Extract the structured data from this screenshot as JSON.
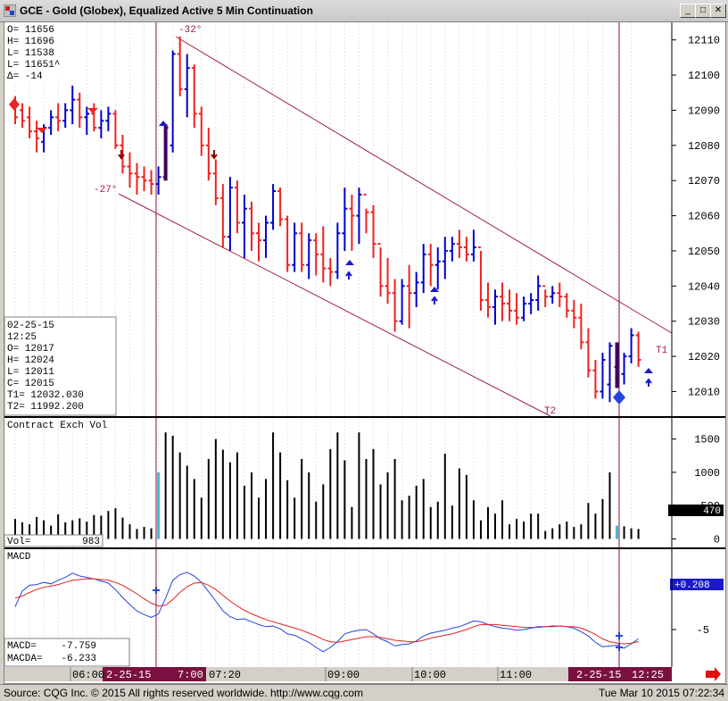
{
  "window": {
    "title": "GCE - Gold (Globex), Equalized Active 5 Min Continuation",
    "min_icon": "minimize-icon",
    "max_icon": "maximize-icon",
    "close_icon": "close-icon"
  },
  "top_ohlc": {
    "lines": [
      "O=   11656",
      "H=   11696",
      "L=   11538",
      "L=   11651^",
      "Δ=     -14"
    ]
  },
  "cursor_box": {
    "lines": [
      "02-25-15",
      "12:25",
      "O=          12017",
      "H=          12024",
      "L=          12011",
      "C=          12015",
      "T1=    12032.030",
      "T2=    11992.200"
    ]
  },
  "annotations": {
    "high_angle": "-32°",
    "low_angle": "-27°",
    "t1": "T1",
    "t2": "T2"
  },
  "volume_panel": {
    "title": "Contract Exch Vol",
    "vol_label": "Vol=",
    "vol_value": "983",
    "last_value": "470"
  },
  "macd_panel": {
    "title": "MACD",
    "badge": "+0.208",
    "macd_label": "MACD=",
    "macd_value": "-7.759",
    "macda_label": "MACDA=",
    "macda_value": "-6.233"
  },
  "time_axis": [
    "06:00",
    "2-25-15",
    "7:00",
    "07:20",
    "09:00",
    "10:00",
    "11:00",
    "2-25-15",
    "12:25"
  ],
  "status": {
    "left": "Source: CQG Inc. © 2015 All rights reserved worldwide. http://www.cqg.com",
    "right": "Tue Mar 10 2015 07:22:34"
  },
  "colors": {
    "up": "#0000cc",
    "down": "#ee2222",
    "highlight_bar": "#400060",
    "vol_highlight": "#44bbcc",
    "channel": "#a02040",
    "macd": "#2244dd",
    "signal": "#dd2222"
  },
  "chart_data": [
    {
      "type": "ohlc",
      "title": "GCE - Gold (Globex), Equalized Active 5 Min Continuation",
      "y_axis_ticks": [
        12010,
        12020,
        12030,
        12040,
        12050,
        12060,
        12070,
        12080,
        12090,
        12100,
        12110
      ],
      "ylim": [
        12003,
        12115
      ],
      "bars": [
        [
          12092,
          12094,
          12086,
          12088
        ],
        [
          12090,
          12092,
          12085,
          12087
        ],
        [
          12088,
          12091,
          12082,
          12084
        ],
        [
          12084,
          12087,
          12078,
          12082
        ],
        [
          12081,
          12086,
          12078,
          12085
        ],
        [
          12085,
          12090,
          12083,
          12088
        ],
        [
          12088,
          12092,
          12084,
          12087
        ],
        [
          12087,
          12092,
          12085,
          12090
        ],
        [
          12090,
          12097,
          12086,
          12093
        ],
        [
          12093,
          12095,
          12085,
          12088
        ],
        [
          12088,
          12091,
          12083,
          12089
        ],
        [
          12089,
          12092,
          12084,
          12085
        ],
        [
          12085,
          12090,
          12082,
          12087
        ],
        [
          12087,
          12091,
          12084,
          12089
        ],
        [
          12089,
          12090,
          12079,
          12080
        ],
        [
          12080,
          12083,
          12072,
          12074
        ],
        [
          12074,
          12078,
          12068,
          12072
        ],
        [
          12072,
          12075,
          12066,
          12071
        ],
        [
          12071,
          12074,
          12067,
          12070
        ],
        [
          12070,
          12073,
          12066,
          12069
        ],
        [
          12069,
          12074,
          12066,
          12071
        ],
        [
          12071,
          12086,
          12070,
          12085
        ],
        [
          12080,
          12107,
          12078,
          12106
        ],
        [
          12106,
          12111,
          12094,
          12096
        ],
        [
          12096,
          12106,
          12088,
          12102
        ],
        [
          12102,
          12103,
          12085,
          12089
        ],
        [
          12089,
          12091,
          12077,
          12080
        ],
        [
          12080,
          12085,
          12070,
          12072
        ],
        [
          12072,
          12076,
          12063,
          12065
        ],
        [
          12065,
          12069,
          12051,
          12054
        ],
        [
          12054,
          12071,
          12050,
          12068
        ],
        [
          12068,
          12070,
          12055,
          12058
        ],
        [
          12058,
          12066,
          12048,
          12062
        ],
        [
          12062,
          12064,
          12050,
          12055
        ],
        [
          12055,
          12058,
          12047,
          12053
        ],
        [
          12053,
          12060,
          12048,
          12058
        ],
        [
          12058,
          12069,
          12056,
          12067
        ],
        [
          12067,
          12068,
          12057,
          12059
        ],
        [
          12059,
          12060,
          12044,
          12046
        ],
        [
          12046,
          12058,
          12044,
          12055
        ],
        [
          12055,
          12058,
          12044,
          12046
        ],
        [
          12046,
          12055,
          12042,
          12053
        ],
        [
          12053,
          12055,
          12043,
          12049
        ],
        [
          12049,
          12057,
          12041,
          12045
        ],
        [
          12045,
          12048,
          12040,
          12044
        ],
        [
          12044,
          12058,
          12042,
          12055
        ],
        [
          12055,
          12068,
          12050,
          12062
        ],
        [
          12062,
          12066,
          12050,
          12060
        ],
        [
          12060,
          12068,
          12052,
          12066
        ],
        [
          12066,
          12062,
          12055,
          12061
        ],
        [
          12061,
          12063,
          12048,
          12052
        ],
        [
          12052,
          12051,
          12037,
          12040
        ],
        [
          12040,
          12048,
          12035,
          12038
        ],
        [
          12038,
          12042,
          12027,
          12030
        ],
        [
          12030,
          12042,
          12029,
          12040
        ],
        [
          12040,
          12046,
          12028,
          12038
        ],
        [
          12038,
          12044,
          12034,
          12041
        ],
        [
          12041,
          12052,
          12038,
          12049
        ],
        [
          12049,
          12052,
          12040,
          12046
        ],
        [
          12046,
          12051,
          12039,
          12047
        ],
        [
          12047,
          12054,
          12042,
          12050
        ],
        [
          12050,
          12054,
          12047,
          12052
        ],
        [
          12052,
          12056,
          12048,
          12051
        ],
        [
          12051,
          12054,
          12047,
          12049
        ],
        [
          12049,
          12056,
          12047,
          12051
        ],
        [
          12051,
          12050,
          12033,
          12036
        ],
        [
          12036,
          12041,
          12031,
          12034
        ],
        [
          12034,
          12039,
          12029,
          12037
        ],
        [
          12037,
          12041,
          12030,
          12035
        ],
        [
          12035,
          12039,
          12030,
          12033
        ],
        [
          12033,
          12038,
          12029,
          12031
        ],
        [
          12031,
          12037,
          12030,
          12035
        ],
        [
          12035,
          12038,
          12032,
          12036
        ],
        [
          12036,
          12043,
          12033,
          12040
        ],
        [
          12040,
          12039,
          12034,
          12037
        ],
        [
          12037,
          12040,
          12035,
          12038
        ],
        [
          12038,
          12041,
          12034,
          12037
        ],
        [
          12037,
          12038,
          12031,
          12033
        ],
        [
          12033,
          12036,
          12028,
          12031
        ],
        [
          12031,
          12035,
          12022,
          12024
        ],
        [
          12024,
          12028,
          12014,
          12016
        ],
        [
          12016,
          12019,
          12008,
          12010
        ],
        [
          12010,
          12021,
          12008,
          12019
        ],
        [
          12012,
          12024,
          12007,
          12023
        ],
        [
          12017,
          12024,
          12011,
          12015
        ],
        [
          12015,
          12021,
          12012,
          12020
        ],
        [
          12020,
          12028,
          12018,
          12026
        ],
        [
          12026,
          12027,
          12017,
          12019
        ]
      ]
    },
    {
      "type": "bar",
      "title": "Contract Exch Vol",
      "y_axis_ticks": [
        0,
        500,
        1000,
        1500
      ],
      "ylim": [
        -100,
        1750
      ],
      "values": [
        300,
        250,
        220,
        330,
        280,
        200,
        370,
        250,
        280,
        310,
        260,
        360,
        350,
        420,
        460,
        320,
        220,
        150,
        180,
        160,
        1000,
        1600,
        1550,
        1300,
        1100,
        900,
        620,
        1200,
        1500,
        1340,
        1150,
        1300,
        800,
        1000,
        620,
        900,
        1600,
        1300,
        880,
        620,
        1200,
        1000,
        560,
        820,
        1350,
        1600,
        1180,
        480,
        1600,
        1200,
        1350,
        820,
        1000,
        1200,
        580,
        650,
        800,
        900,
        480,
        560,
        1280,
        500,
        1060,
        960,
        580,
        280,
        480,
        380,
        580,
        220,
        300,
        260,
        380,
        380,
        120,
        160,
        220,
        260,
        180,
        220,
        540,
        380,
        600,
        1000,
        200,
        190,
        160,
        150
      ]
    },
    {
      "type": "line",
      "title": "MACD",
      "y_axis_ticks": [
        -5
      ],
      "series": [
        {
          "name": "MACD",
          "values": [
            -1.8,
            0.4,
            1.2,
            1.3,
            1.6,
            1.4,
            1.9,
            2.3,
            2.9,
            2.5,
            2.3,
            2.1,
            1.8,
            1.5,
            0.6,
            -0.5,
            -1.5,
            -2.4,
            -2.9,
            -3.3,
            -2.8,
            -0.6,
            1.9,
            2.7,
            3.0,
            2.5,
            1.6,
            0.3,
            -1.0,
            -2.4,
            -3.2,
            -3.6,
            -3.5,
            -3.9,
            -4.3,
            -4.6,
            -4.5,
            -4.9,
            -5.6,
            -5.8,
            -6.3,
            -6.8,
            -7.5,
            -8.1,
            -7.5,
            -6.7,
            -5.6,
            -5.3,
            -5.1,
            -5.0,
            -5.6,
            -6.3,
            -6.7,
            -7.3,
            -7.1,
            -7.0,
            -6.6,
            -5.9,
            -5.5,
            -5.3,
            -5.1,
            -4.8,
            -4.6,
            -4.2,
            -3.8,
            -3.9,
            -4.3,
            -4.6,
            -4.8,
            -4.9,
            -5.1,
            -5.0,
            -4.8,
            -4.6,
            -4.6,
            -4.5,
            -4.5,
            -4.6,
            -4.8,
            -5.3,
            -5.9,
            -6.8,
            -7.4,
            -7.3,
            -7.2,
            -7.6,
            -7.0,
            -6.3
          ]
        },
        {
          "name": "MACDA",
          "values": [
            -0.6,
            -0.3,
            0.2,
            0.6,
            0.9,
            1.1,
            1.3,
            1.6,
            1.9,
            2.0,
            2.1,
            2.1,
            2.0,
            1.9,
            1.6,
            1.2,
            0.6,
            0.0,
            -0.7,
            -1.3,
            -1.7,
            -1.6,
            -0.8,
            0.2,
            1.0,
            1.5,
            1.6,
            1.2,
            0.6,
            -0.2,
            -1.0,
            -1.7,
            -2.3,
            -2.8,
            -3.2,
            -3.6,
            -3.9,
            -4.2,
            -4.5,
            -4.8,
            -5.1,
            -5.5,
            -5.9,
            -6.4,
            -6.7,
            -6.8,
            -6.6,
            -6.4,
            -6.2,
            -6.0,
            -6.0,
            -6.1,
            -6.3,
            -6.5,
            -6.6,
            -6.7,
            -6.7,
            -6.5,
            -6.2,
            -6.0,
            -5.8,
            -5.6,
            -5.3,
            -5.0,
            -4.6,
            -4.3,
            -4.3,
            -4.3,
            -4.4,
            -4.5,
            -4.6,
            -4.7,
            -4.7,
            -4.7,
            -4.6,
            -4.6,
            -4.5,
            -4.6,
            -4.6,
            -4.8,
            -5.2,
            -5.7,
            -6.3,
            -6.7,
            -6.9,
            -7.0,
            -6.9,
            -6.7
          ]
        }
      ]
    }
  ]
}
